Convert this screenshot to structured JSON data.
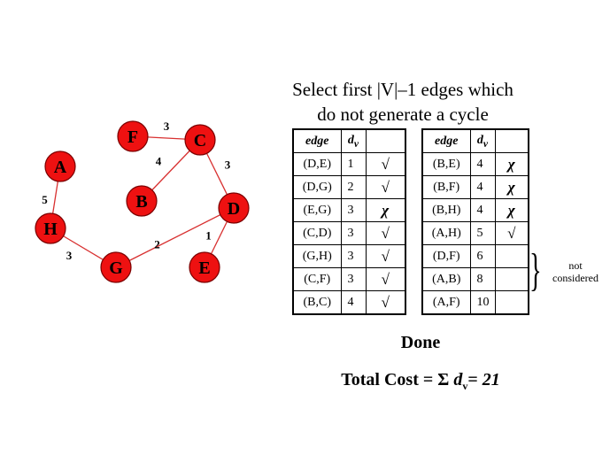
{
  "title": {
    "line1": "Select first |V|–1 edges which",
    "line2": "do not generate a cycle"
  },
  "colors": {
    "node_fill": "#ee1111",
    "node_stroke": "#7a0000",
    "edge": "#d83030"
  },
  "graph": {
    "nodes": [
      "A",
      "B",
      "C",
      "D",
      "E",
      "F",
      "G",
      "H"
    ],
    "edges": [
      {
        "from": "F",
        "to": "C",
        "weight": "3"
      },
      {
        "from": "B",
        "to": "C",
        "weight": "4"
      },
      {
        "from": "C",
        "to": "D",
        "weight": "3"
      },
      {
        "from": "A",
        "to": "H",
        "weight": "5"
      },
      {
        "from": "H",
        "to": "G",
        "weight": "3"
      },
      {
        "from": "G",
        "to": "D",
        "weight": "2"
      },
      {
        "from": "D",
        "to": "E",
        "weight": "1"
      }
    ]
  },
  "table_left": {
    "headers": {
      "edge": "edge",
      "dv": "d",
      "dv_sub": "v",
      "mark": ""
    },
    "rows": [
      {
        "edge": "(D,E)",
        "dv": "1",
        "mark": "√"
      },
      {
        "edge": "(D,G)",
        "dv": "2",
        "mark": "√"
      },
      {
        "edge": "(E,G)",
        "dv": "3",
        "mark": "χ"
      },
      {
        "edge": "(C,D)",
        "dv": "3",
        "mark": "√"
      },
      {
        "edge": "(G,H)",
        "dv": "3",
        "mark": "√"
      },
      {
        "edge": "(C,F)",
        "dv": "3",
        "mark": "√"
      },
      {
        "edge": "(B,C)",
        "dv": "4",
        "mark": "√"
      }
    ]
  },
  "table_right": {
    "headers": {
      "edge": "edge",
      "dv": "d",
      "dv_sub": "v",
      "mark": ""
    },
    "rows": [
      {
        "edge": "(B,E)",
        "dv": "4",
        "mark": "χ"
      },
      {
        "edge": "(B,F)",
        "dv": "4",
        "mark": "χ"
      },
      {
        "edge": "(B,H)",
        "dv": "4",
        "mark": "χ"
      },
      {
        "edge": "(A,H)",
        "dv": "5",
        "mark": "√"
      },
      {
        "edge": "(D,F)",
        "dv": "6",
        "mark": ""
      },
      {
        "edge": "(A,B)",
        "dv": "8",
        "mark": ""
      },
      {
        "edge": "(A,F)",
        "dv": "10",
        "mark": ""
      }
    ]
  },
  "brace_note": {
    "line1": "not",
    "line2": "considered"
  },
  "done_label": "Done",
  "total": {
    "prefix": "Total Cost = Σ ",
    "d": "d",
    "sub": "v",
    "eq": "= ",
    "value": "21"
  }
}
